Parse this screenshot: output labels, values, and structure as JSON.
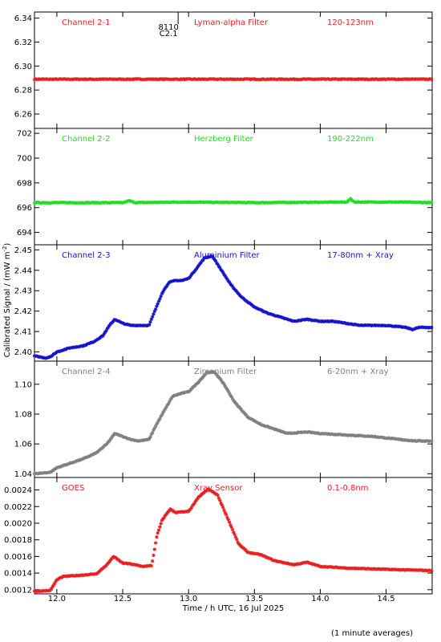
{
  "chart_data": {
    "type": "scatter",
    "xlabel": "Time / h UTC, 16 Jul 2025",
    "ylabel": "Calibrated Signal / (mW m",
    "ylabel_sup": "-2",
    "ylabel_close": ")",
    "footnote": "(1 minute averages)",
    "xlim": [
      11.83,
      14.85
    ],
    "xticks": [
      12.0,
      12.5,
      13.0,
      13.5,
      14.0,
      14.5
    ],
    "xtick_labels": [
      "12.0",
      "12.5",
      "13.0",
      "13.5",
      "14.0",
      "14.5"
    ],
    "flare_marker": {
      "x": 12.86,
      "label1": "8110",
      "label2": "C2.1"
    },
    "panels": [
      {
        "id": "ch21",
        "color": "#e82020",
        "channel": "Channel 2-1",
        "filter": "Lyman-alpha Filter",
        "band": "120-123nm",
        "ylim": [
          6.248,
          6.345
        ],
        "yticks": [
          6.26,
          6.28,
          6.3,
          6.32,
          6.34
        ],
        "ytick_labels": [
          "6.26",
          "6.28",
          "6.30",
          "6.32",
          "6.34"
        ],
        "series": [
          [
            11.83,
            6.289
          ],
          [
            12.5,
            6.289
          ],
          [
            13.0,
            6.289
          ],
          [
            13.5,
            6.289
          ],
          [
            14.0,
            6.289
          ],
          [
            14.85,
            6.289
          ]
        ]
      },
      {
        "id": "ch22",
        "color": "#22dd22",
        "channel": "Channel 2-2",
        "filter": "Herzberg Filter",
        "band": "190-222nm",
        "ylim": [
          693.0,
          702.4
        ],
        "yticks": [
          694,
          696,
          698,
          700,
          702
        ],
        "ytick_labels": [
          "694",
          "696",
          "698",
          "700",
          "702"
        ],
        "series": [
          [
            11.83,
            696.4
          ],
          [
            12.5,
            696.4
          ],
          [
            12.55,
            696.55
          ],
          [
            12.6,
            696.4
          ],
          [
            12.95,
            696.45
          ],
          [
            13.5,
            696.4
          ],
          [
            14.2,
            696.45
          ],
          [
            14.23,
            696.7
          ],
          [
            14.26,
            696.45
          ],
          [
            14.6,
            696.45
          ],
          [
            14.85,
            696.4
          ]
        ]
      },
      {
        "id": "ch23",
        "color": "#1515cc",
        "channel": "Channel 2-3",
        "filter": "Aluminium Filter",
        "band": "17-80nm + Xray",
        "ylim": [
          2.3955,
          2.4525
        ],
        "yticks": [
          2.4,
          2.41,
          2.42,
          2.43,
          2.44,
          2.45
        ],
        "ytick_labels": [
          "2.40",
          "2.41",
          "2.42",
          "2.43",
          "2.44",
          "2.45"
        ],
        "series": [
          [
            11.83,
            2.398
          ],
          [
            11.92,
            2.397
          ],
          [
            11.96,
            2.398
          ],
          [
            12.0,
            2.4
          ],
          [
            12.1,
            2.402
          ],
          [
            12.2,
            2.403
          ],
          [
            12.28,
            2.405
          ],
          [
            12.35,
            2.408
          ],
          [
            12.4,
            2.413
          ],
          [
            12.44,
            2.416
          ],
          [
            12.5,
            2.414
          ],
          [
            12.56,
            2.413
          ],
          [
            12.62,
            2.413
          ],
          [
            12.7,
            2.413
          ],
          [
            12.75,
            2.421
          ],
          [
            12.8,
            2.429
          ],
          [
            12.85,
            2.434
          ],
          [
            12.9,
            2.435
          ],
          [
            12.95,
            2.435
          ],
          [
            13.0,
            2.436
          ],
          [
            13.05,
            2.44
          ],
          [
            13.12,
            2.446
          ],
          [
            13.18,
            2.447
          ],
          [
            13.25,
            2.44
          ],
          [
            13.32,
            2.433
          ],
          [
            13.4,
            2.427
          ],
          [
            13.5,
            2.422
          ],
          [
            13.6,
            2.419
          ],
          [
            13.7,
            2.417
          ],
          [
            13.8,
            2.415
          ],
          [
            13.9,
            2.416
          ],
          [
            14.0,
            2.415
          ],
          [
            14.1,
            2.415
          ],
          [
            14.2,
            2.414
          ],
          [
            14.3,
            2.413
          ],
          [
            14.5,
            2.413
          ],
          [
            14.65,
            2.412
          ],
          [
            14.7,
            2.411
          ],
          [
            14.75,
            2.412
          ],
          [
            14.85,
            2.412
          ]
        ]
      },
      {
        "id": "ch24",
        "color": "#808080",
        "channel": "Channel 2-4",
        "filter": "Zirconium Filter",
        "band": "6-20nm + Xray",
        "ylim": [
          1.0375,
          1.1155
        ],
        "yticks": [
          1.04,
          1.06,
          1.08,
          1.1
        ],
        "ytick_labels": [
          "1.04",
          "1.06",
          "1.08",
          "1.10"
        ],
        "series": [
          [
            11.83,
            1.04
          ],
          [
            11.95,
            1.041
          ],
          [
            12.0,
            1.044
          ],
          [
            12.1,
            1.047
          ],
          [
            12.2,
            1.05
          ],
          [
            12.3,
            1.054
          ],
          [
            12.38,
            1.06
          ],
          [
            12.44,
            1.067
          ],
          [
            12.5,
            1.065
          ],
          [
            12.56,
            1.063
          ],
          [
            12.62,
            1.062
          ],
          [
            12.7,
            1.063
          ],
          [
            12.75,
            1.072
          ],
          [
            12.82,
            1.083
          ],
          [
            12.88,
            1.092
          ],
          [
            12.95,
            1.094
          ],
          [
            13.0,
            1.095
          ],
          [
            13.07,
            1.101
          ],
          [
            13.14,
            1.108
          ],
          [
            13.2,
            1.108
          ],
          [
            13.27,
            1.1
          ],
          [
            13.35,
            1.088
          ],
          [
            13.45,
            1.078
          ],
          [
            13.55,
            1.073
          ],
          [
            13.65,
            1.07
          ],
          [
            13.75,
            1.067
          ],
          [
            13.9,
            1.068
          ],
          [
            14.0,
            1.067
          ],
          [
            14.2,
            1.066
          ],
          [
            14.4,
            1.065
          ],
          [
            14.6,
            1.063
          ],
          [
            14.72,
            1.062
          ],
          [
            14.85,
            1.062
          ]
        ]
      },
      {
        "id": "goes",
        "color": "#e82020",
        "channel": "GOES",
        "filter": "Xray Sensor",
        "band": "0.1-0.8nm",
        "ylim": [
          0.00115,
          0.00255
        ],
        "yticks": [
          0.0012,
          0.0014,
          0.0016,
          0.0018,
          0.002,
          0.0022,
          0.0024
        ],
        "ytick_labels": [
          "0.0012",
          "0.0014",
          "0.0016",
          "0.0018",
          "0.0020",
          "0.0022",
          "0.0024"
        ],
        "series": [
          [
            11.83,
            0.00118
          ],
          [
            11.95,
            0.00119
          ],
          [
            12.0,
            0.00132
          ],
          [
            12.05,
            0.00136
          ],
          [
            12.15,
            0.00137
          ],
          [
            12.3,
            0.00139
          ],
          [
            12.38,
            0.0015
          ],
          [
            12.43,
            0.0016
          ],
          [
            12.5,
            0.00152
          ],
          [
            12.56,
            0.00151
          ],
          [
            12.65,
            0.00148
          ],
          [
            12.72,
            0.00149
          ],
          [
            12.76,
            0.00185
          ],
          [
            12.8,
            0.00204
          ],
          [
            12.86,
            0.00217
          ],
          [
            12.9,
            0.00213
          ],
          [
            13.0,
            0.00214
          ],
          [
            13.08,
            0.00232
          ],
          [
            13.15,
            0.00241
          ],
          [
            13.22,
            0.00234
          ],
          [
            13.3,
            0.00205
          ],
          [
            13.38,
            0.00175
          ],
          [
            13.45,
            0.00165
          ],
          [
            13.55,
            0.00162
          ],
          [
            13.65,
            0.00155
          ],
          [
            13.8,
            0.0015
          ],
          [
            13.9,
            0.00153
          ],
          [
            14.0,
            0.00148
          ],
          [
            14.2,
            0.00146
          ],
          [
            14.4,
            0.00145
          ],
          [
            14.6,
            0.00144
          ],
          [
            14.85,
            0.00143
          ]
        ]
      }
    ]
  }
}
